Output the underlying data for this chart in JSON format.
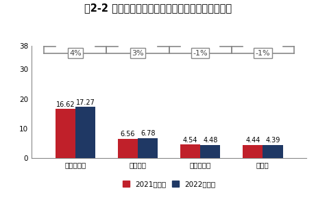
{
  "title": "图2-2 博实股份营业总收入及各级利润变动（亿元）",
  "categories": [
    "营业总收入",
    "总毛利润",
    "总核心利润",
    "净利润"
  ],
  "values_2021": [
    16.62,
    6.56,
    4.54,
    4.44
  ],
  "values_2022": [
    17.27,
    6.78,
    4.48,
    4.39
  ],
  "growth_labels": [
    "4%",
    "3%",
    "-1%",
    "-1%"
  ],
  "color_2021": "#C0202A",
  "color_2022": "#1F3864",
  "legend_2021": "2021三季报",
  "legend_2022": "2022三季报",
  "ylim": [
    0,
    38
  ],
  "yticks": [
    0,
    10,
    20,
    30,
    38
  ],
  "bar_width": 0.32,
  "background_color": "#FFFFFF",
  "title_fontsize": 10.5,
  "label_fontsize": 7,
  "tick_fontsize": 7.5,
  "growth_fontsize": 8,
  "bracket_color": "#888888",
  "spine_color": "#888888"
}
